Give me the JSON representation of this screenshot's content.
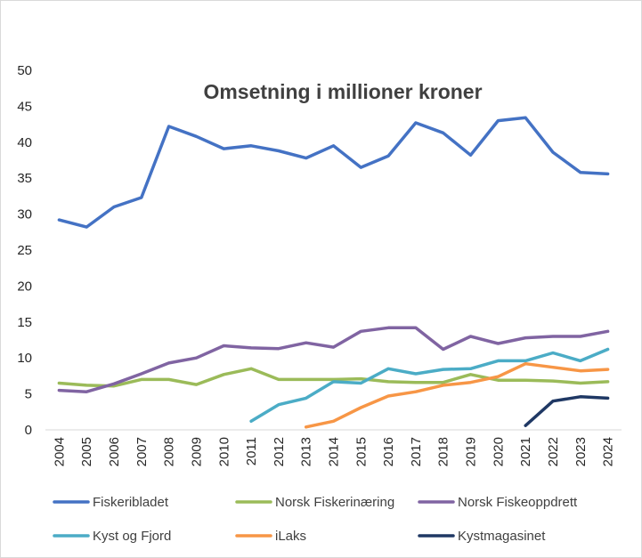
{
  "chart_data": {
    "type": "line",
    "title": "Omsetning i millioner kroner",
    "xlabel": "",
    "ylabel": "",
    "ylim": [
      0,
      50
    ],
    "yticks": [
      0,
      5,
      10,
      15,
      20,
      25,
      30,
      35,
      40,
      45,
      50
    ],
    "x": [
      "2004",
      "2005",
      "2006",
      "2007",
      "2008",
      "2009",
      "2010",
      "2011",
      "2012",
      "2013",
      "2014",
      "2015",
      "2016",
      "2017",
      "2018",
      "2019",
      "2020",
      "2021",
      "2022",
      "2023",
      "2024"
    ],
    "grid": false,
    "legend_position": "bottom",
    "series": [
      {
        "name": "Fiskeribladet",
        "color": "#4472C4",
        "values": [
          29.2,
          28.2,
          31.0,
          32.3,
          42.2,
          40.8,
          39.1,
          39.5,
          38.8,
          37.8,
          39.5,
          36.5,
          38.1,
          42.7,
          41.3,
          38.2,
          43.0,
          43.4,
          38.6,
          35.8,
          35.6
        ]
      },
      {
        "name": "Norsk Fiskerinæring",
        "color": "#9BBB59",
        "values": [
          6.5,
          6.2,
          6.1,
          7.0,
          7.0,
          6.3,
          7.7,
          8.5,
          7.0,
          7.0,
          7.0,
          7.1,
          6.7,
          6.6,
          6.6,
          7.7,
          6.9,
          6.9,
          6.8,
          6.5,
          6.7
        ]
      },
      {
        "name": "Norsk Fiskeoppdrett",
        "color": "#8064A2",
        "values": [
          5.5,
          5.3,
          6.4,
          7.8,
          9.3,
          10.0,
          11.7,
          11.4,
          11.3,
          12.1,
          11.5,
          13.7,
          14.2,
          14.2,
          11.2,
          13.0,
          12.0,
          12.8,
          13.0,
          13.0,
          13.7
        ]
      },
      {
        "name": "Kyst og Fjord",
        "color": "#4BACC6",
        "values": [
          null,
          null,
          null,
          null,
          null,
          null,
          null,
          1.2,
          3.5,
          4.4,
          6.7,
          6.5,
          8.5,
          7.8,
          8.4,
          8.5,
          9.6,
          9.6,
          10.7,
          9.6,
          11.2
        ]
      },
      {
        "name": "iLaks",
        "color": "#F79646",
        "values": [
          null,
          null,
          null,
          null,
          null,
          null,
          null,
          null,
          null,
          0.4,
          1.2,
          3.1,
          4.7,
          5.3,
          6.2,
          6.6,
          7.4,
          9.2,
          8.7,
          8.2,
          8.4
        ]
      },
      {
        "name": "Kystmagasinet",
        "color": "#1F3864",
        "values": [
          null,
          null,
          null,
          null,
          null,
          null,
          null,
          null,
          null,
          null,
          null,
          null,
          null,
          null,
          null,
          null,
          null,
          0.6,
          4.0,
          4.6,
          4.4
        ]
      }
    ]
  }
}
